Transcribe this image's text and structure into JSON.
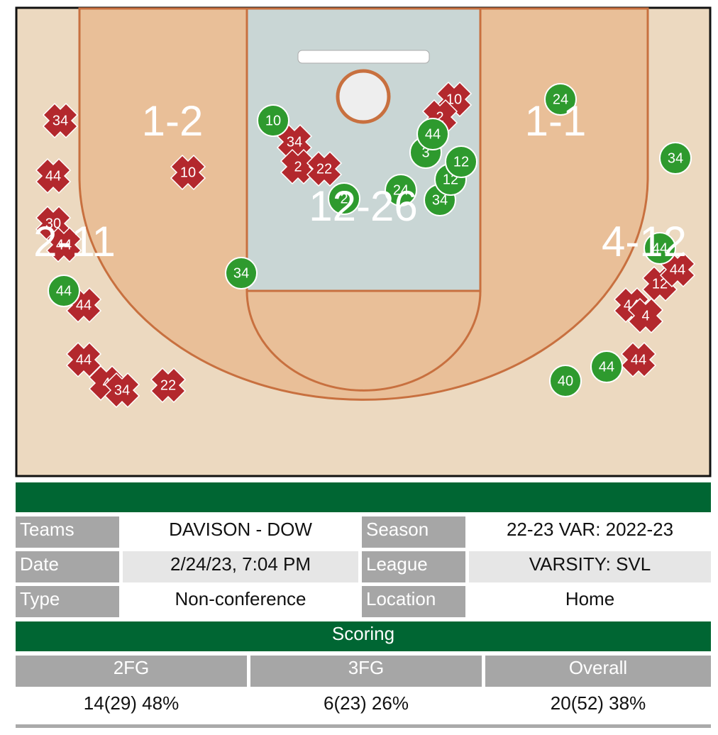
{
  "court": {
    "zones": [
      "1-2",
      "1-1",
      "12-26",
      "2-11",
      "4-12"
    ],
    "shots": [
      {
        "label": "34",
        "made": false
      },
      {
        "label": "44",
        "made": false
      },
      {
        "label": "30",
        "made": false
      },
      {
        "label": "44",
        "made": false
      },
      {
        "label": "44",
        "made": false
      },
      {
        "label": "44",
        "made": false
      },
      {
        "label": "4",
        "made": false
      },
      {
        "label": "34",
        "made": false
      },
      {
        "label": "22",
        "made": false
      },
      {
        "label": "10",
        "made": false
      },
      {
        "label": "34",
        "made": false
      },
      {
        "label": "2",
        "made": false
      },
      {
        "label": "22",
        "made": false
      },
      {
        "label": "10",
        "made": false
      },
      {
        "label": "2",
        "made": false
      },
      {
        "label": "44",
        "made": false
      },
      {
        "label": "4",
        "made": false
      },
      {
        "label": "12",
        "made": false
      },
      {
        "label": "44",
        "made": false
      },
      {
        "label": "44",
        "made": false
      },
      {
        "label": "10",
        "made": true
      },
      {
        "label": "34",
        "made": true
      },
      {
        "label": "44",
        "made": true
      },
      {
        "label": "2",
        "made": true
      },
      {
        "label": "24",
        "made": true
      },
      {
        "label": "34",
        "made": true
      },
      {
        "label": "12",
        "made": true
      },
      {
        "label": "12",
        "made": true
      },
      {
        "label": "3",
        "made": true
      },
      {
        "label": "44",
        "made": true
      },
      {
        "label": "24",
        "made": true
      },
      {
        "label": "34",
        "made": true
      },
      {
        "label": "44",
        "made": true
      },
      {
        "label": "44",
        "made": true
      },
      {
        "label": "40",
        "made": true
      }
    ]
  },
  "info": {
    "rows": [
      [
        "Teams",
        "DAVISON - DOW",
        "Season",
        "22-23 VAR: 2022-23"
      ],
      [
        "Date",
        "2/24/23, 7:04 PM",
        "League",
        "VARSITY: SVL"
      ],
      [
        "Type",
        "Non-conference",
        "Location",
        "Home"
      ]
    ]
  },
  "scoring": {
    "title": "Scoring",
    "headers": [
      "2FG",
      "3FG",
      "Overall"
    ],
    "values": [
      "14(29) 48%",
      "6(23) 26%",
      "20(52) 38%"
    ]
  }
}
